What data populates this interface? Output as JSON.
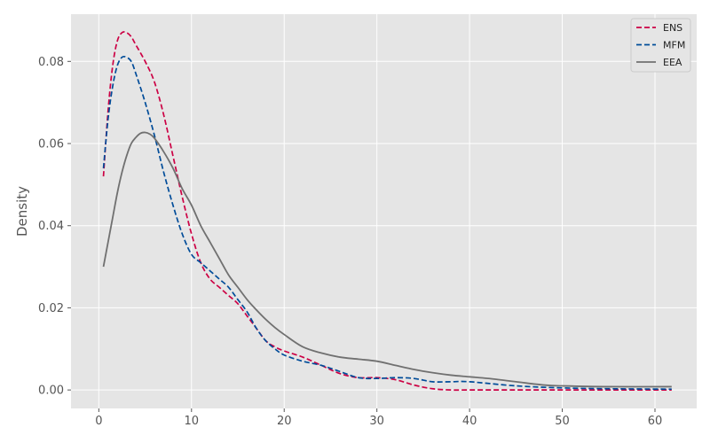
{
  "chart_data": {
    "type": "line",
    "title": "",
    "xlabel": "",
    "ylabel": "Density",
    "xlim": [
      -3,
      64.5
    ],
    "ylim": [
      -0.0045,
      0.0915
    ],
    "xticks": [
      0,
      10,
      20,
      30,
      40,
      50,
      60
    ],
    "yticks": [
      0.0,
      0.02,
      0.04,
      0.06,
      0.08
    ],
    "xtick_labels": [
      "0",
      "10",
      "20",
      "30",
      "40",
      "50",
      "60"
    ],
    "ytick_labels": [
      "0.00",
      "0.02",
      "0.04",
      "0.06",
      "0.08"
    ],
    "grid": true,
    "legend_position": "top-right",
    "background_color": "#e5e5e5",
    "grid_color": "#ffffff",
    "series": [
      {
        "name": "ENS",
        "color": "#cc0044",
        "dash": "dashed",
        "x": [
          0.5,
          1,
          1.5,
          2,
          2.5,
          3,
          3.5,
          4,
          5,
          6,
          7,
          8,
          9,
          10,
          11,
          12,
          13,
          14,
          15,
          16,
          17,
          18,
          19,
          20,
          22,
          24,
          26,
          28,
          30,
          32,
          34,
          36,
          38,
          40,
          45,
          50,
          55,
          61.8
        ],
        "y": [
          0.052,
          0.068,
          0.079,
          0.085,
          0.087,
          0.087,
          0.086,
          0.084,
          0.08,
          0.075,
          0.067,
          0.057,
          0.047,
          0.038,
          0.031,
          0.027,
          0.025,
          0.023,
          0.021,
          0.018,
          0.015,
          0.012,
          0.0105,
          0.0095,
          0.008,
          0.006,
          0.004,
          0.003,
          0.003,
          0.0025,
          0.0012,
          0.0003,
          0.0,
          0.0,
          0.0,
          0.0,
          0.0,
          0.0
        ]
      },
      {
        "name": "MFM",
        "color": "#004c99",
        "dash": "dashed",
        "x": [
          0.5,
          1,
          1.5,
          2,
          2.5,
          3,
          3.5,
          4,
          5,
          6,
          7,
          8,
          9,
          10,
          11,
          12,
          13,
          14,
          15,
          16,
          17,
          18,
          19,
          20,
          22,
          24,
          26,
          28,
          30,
          32,
          34,
          36,
          38,
          40,
          45,
          50,
          55,
          61.8
        ],
        "y": [
          0.054,
          0.066,
          0.074,
          0.079,
          0.081,
          0.081,
          0.08,
          0.077,
          0.07,
          0.062,
          0.053,
          0.045,
          0.038,
          0.033,
          0.031,
          0.029,
          0.027,
          0.025,
          0.022,
          0.019,
          0.015,
          0.012,
          0.01,
          0.0085,
          0.007,
          0.006,
          0.0045,
          0.003,
          0.0028,
          0.003,
          0.0028,
          0.002,
          0.002,
          0.002,
          0.001,
          0.0005,
          0.0003,
          0.0002
        ]
      },
      {
        "name": "EEA",
        "color": "#707070",
        "dash": "solid",
        "x": [
          0.5,
          1,
          1.5,
          2,
          2.5,
          3,
          3.5,
          4,
          4.5,
          5,
          5.5,
          6,
          7,
          8,
          9,
          10,
          11,
          12,
          13,
          14,
          15,
          16,
          17,
          18,
          19,
          20,
          22,
          24,
          26,
          28,
          30,
          32,
          34,
          36,
          38,
          40,
          42,
          45,
          48,
          50,
          55,
          61.8
        ],
        "y": [
          0.03,
          0.036,
          0.042,
          0.048,
          0.053,
          0.057,
          0.06,
          0.0615,
          0.0625,
          0.0627,
          0.0623,
          0.0613,
          0.058,
          0.054,
          0.049,
          0.045,
          0.04,
          0.036,
          0.032,
          0.028,
          0.025,
          0.022,
          0.0195,
          0.0172,
          0.0152,
          0.0135,
          0.0105,
          0.009,
          0.008,
          0.0075,
          0.007,
          0.006,
          0.005,
          0.0042,
          0.0036,
          0.0032,
          0.0028,
          0.002,
          0.0012,
          0.001,
          0.0008,
          0.0008
        ]
      }
    ]
  }
}
